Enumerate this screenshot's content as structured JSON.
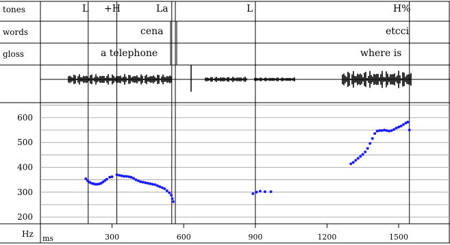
{
  "tiers": {
    "labels": [
      "tones",
      "words",
      "gloss"
    ],
    "tones": [
      "L",
      "+H",
      "La",
      "L",
      "H%"
    ],
    "words": [
      "cena",
      "etcci"
    ],
    "gloss": [
      "a telephone",
      "where is"
    ]
  },
  "axis": {
    "y_unit": "Hz",
    "x_unit": "ms",
    "y_ticks": [
      600,
      500,
      400,
      300,
      200
    ],
    "x_ticks": [
      300,
      600,
      900,
      1200,
      1500
    ]
  },
  "chart_data": {
    "type": "scatter",
    "title": "",
    "xlabel": "ms",
    "ylabel": "Hz",
    "xlim": [
      0,
      1700
    ],
    "ylim": [
      150,
      680
    ],
    "grid": true,
    "boundaries_ms": [
      200,
      320,
      550,
      565,
      900,
      1545
    ],
    "series": [
      {
        "color": "#1a1aff",
        "points": [
          [
            190,
            354
          ],
          [
            198,
            346
          ],
          [
            206,
            340
          ],
          [
            214,
            336
          ],
          [
            222,
            334
          ],
          [
            230,
            332
          ],
          [
            238,
            332
          ],
          [
            246,
            333
          ],
          [
            254,
            336
          ],
          [
            262,
            341
          ],
          [
            270,
            347
          ],
          [
            278,
            352
          ],
          [
            290,
            360
          ],
          [
            300,
            362
          ],
          [
            320,
            370
          ],
          [
            330,
            368
          ],
          [
            340,
            366
          ],
          [
            350,
            364
          ],
          [
            360,
            364
          ],
          [
            370,
            362
          ],
          [
            380,
            360
          ],
          [
            390,
            356
          ],
          [
            400,
            350
          ],
          [
            410,
            346
          ],
          [
            420,
            342
          ],
          [
            430,
            340
          ],
          [
            440,
            338
          ],
          [
            450,
            336
          ],
          [
            460,
            334
          ],
          [
            470,
            332
          ],
          [
            480,
            330
          ],
          [
            490,
            326
          ],
          [
            500,
            322
          ],
          [
            510,
            318
          ],
          [
            520,
            314
          ],
          [
            530,
            306
          ],
          [
            540,
            298
          ],
          [
            548,
            288
          ],
          [
            552,
            274
          ],
          [
            556,
            262
          ],
          [
            890,
            294
          ],
          [
            905,
            300
          ],
          [
            920,
            304
          ],
          [
            940,
            302
          ],
          [
            965,
            302
          ],
          [
            1300,
            414
          ],
          [
            1310,
            420
          ],
          [
            1320,
            428
          ],
          [
            1330,
            436
          ],
          [
            1340,
            444
          ],
          [
            1350,
            452
          ],
          [
            1360,
            462
          ],
          [
            1370,
            476
          ],
          [
            1380,
            496
          ],
          [
            1390,
            516
          ],
          [
            1400,
            536
          ],
          [
            1410,
            546
          ],
          [
            1420,
            548
          ],
          [
            1430,
            548
          ],
          [
            1440,
            550
          ],
          [
            1450,
            548
          ],
          [
            1460,
            546
          ],
          [
            1470,
            548
          ],
          [
            1480,
            552
          ],
          [
            1490,
            558
          ],
          [
            1500,
            562
          ],
          [
            1510,
            566
          ],
          [
            1520,
            572
          ],
          [
            1530,
            578
          ],
          [
            1538,
            582
          ],
          [
            1545,
            550
          ]
        ]
      }
    ]
  }
}
